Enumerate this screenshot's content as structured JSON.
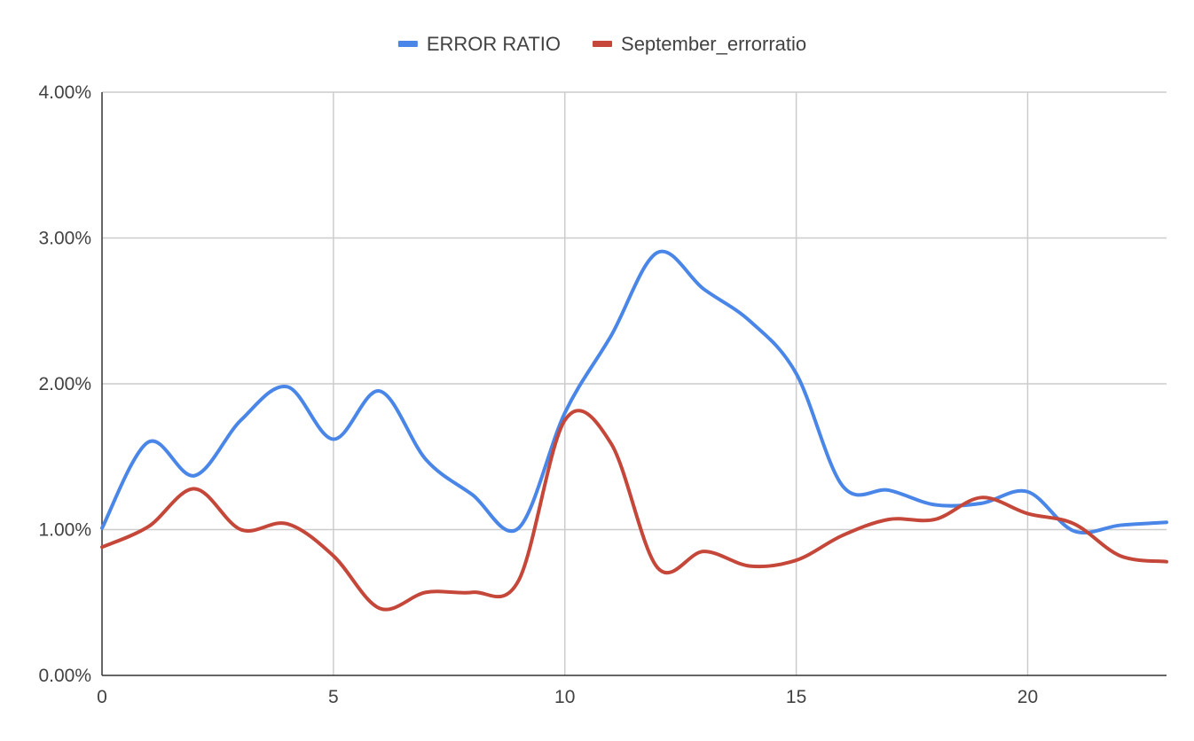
{
  "chart_data": {
    "type": "line",
    "title": "",
    "xlabel": "",
    "ylabel": "",
    "xlim": [
      0,
      23
    ],
    "ylim": [
      0,
      0.04
    ],
    "x_ticks": [
      0,
      5,
      10,
      15,
      20
    ],
    "x_tick_labels": [
      "0",
      "5",
      "10",
      "15",
      "20"
    ],
    "y_ticks": [
      0,
      0.01,
      0.02,
      0.03,
      0.04
    ],
    "y_tick_labels": [
      "0.00%",
      "1.00%",
      "2.00%",
      "3.00%",
      "4.00%"
    ],
    "grid": true,
    "smooth": true,
    "legend_position": "top",
    "x": [
      0,
      1,
      2,
      3,
      4,
      5,
      6,
      7,
      8,
      9,
      10,
      11,
      12,
      13,
      14,
      15,
      16,
      17,
      18,
      19,
      20,
      21,
      22,
      23
    ],
    "series": [
      {
        "name": "ERROR RATIO",
        "color": "#4a86e8",
        "values": [
          0.0101,
          0.016,
          0.0137,
          0.0175,
          0.0198,
          0.0162,
          0.0195,
          0.0148,
          0.0124,
          0.0101,
          0.018,
          0.0233,
          0.029,
          0.0265,
          0.0243,
          0.0207,
          0.013,
          0.0127,
          0.0117,
          0.0118,
          0.0126,
          0.0099,
          0.0103,
          0.0105
        ]
      },
      {
        "name": "September_errorratio",
        "color": "#c5473a",
        "values": [
          0.0088,
          0.0102,
          0.0128,
          0.01,
          0.0104,
          0.0082,
          0.0046,
          0.0057,
          0.0057,
          0.0065,
          0.0175,
          0.0159,
          0.0074,
          0.0085,
          0.0075,
          0.0079,
          0.0096,
          0.0107,
          0.0107,
          0.0122,
          0.0111,
          0.0104,
          0.0082,
          0.0078
        ]
      }
    ]
  }
}
